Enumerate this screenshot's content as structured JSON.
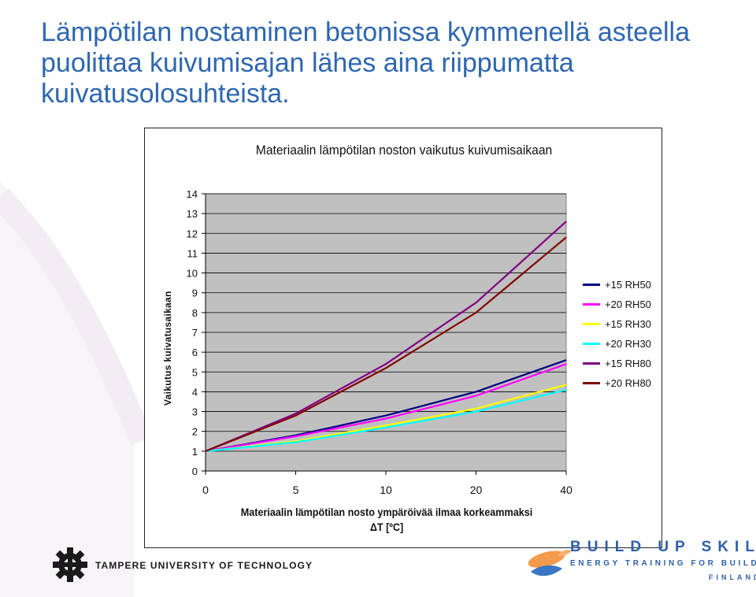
{
  "slide": {
    "title": "Lämpötilan nostaminen betonissa kymmenellä asteella puolittaa kuivumisajan lähes aina riippumatta kuivatusolosuhteista."
  },
  "footer": {
    "university": "TAMPERE UNIVERSITY OF TECHNOLOGY",
    "brand_title": "BUILD UP SKILLS",
    "brand_subtitle": "ENERGY TRAINING FOR BUILDERS",
    "brand_country": "FINLAND"
  },
  "chart_data": {
    "type": "line",
    "title": "Materiaalin lämpötilan noston vaikutus kuivumisaikaan",
    "xlabel_line1": "Materiaalin lämpötilan nosto ympäröivää ilmaa korkeammaksi",
    "xlabel_line2": "ΔT [ºC]",
    "ylabel": "Vaikutus kuivatusaikaan",
    "categories": [
      "0",
      "5",
      "10",
      "20",
      "40"
    ],
    "ylim": [
      0,
      14
    ],
    "yticks": [
      "0",
      "1",
      "2",
      "3",
      "4",
      "5",
      "6",
      "7",
      "8",
      "9",
      "10",
      "11",
      "12",
      "13",
      "14"
    ],
    "grid": true,
    "legend_position": "right",
    "plot_background": "#c0c0c0",
    "series": [
      {
        "name": "+15 RH50",
        "color": "#000080",
        "values": [
          1.0,
          1.8,
          2.8,
          4.0,
          5.6
        ]
      },
      {
        "name": "+20 RH50",
        "color": "#ff00ff",
        "values": [
          1.0,
          1.75,
          2.65,
          3.8,
          5.4
        ]
      },
      {
        "name": "+15 RH30",
        "color": "#ffff00",
        "values": [
          1.0,
          1.5,
          2.3,
          3.15,
          4.35
        ]
      },
      {
        "name": "+20 RH30",
        "color": "#00ffff",
        "values": [
          1.0,
          1.45,
          2.2,
          3.0,
          4.1
        ]
      },
      {
        "name": "+15 RH80",
        "color": "#800080",
        "values": [
          1.0,
          2.9,
          5.4,
          8.5,
          12.6
        ]
      },
      {
        "name": "+20 RH80",
        "color": "#800000",
        "values": [
          1.0,
          2.8,
          5.2,
          8.0,
          11.8
        ]
      }
    ]
  }
}
